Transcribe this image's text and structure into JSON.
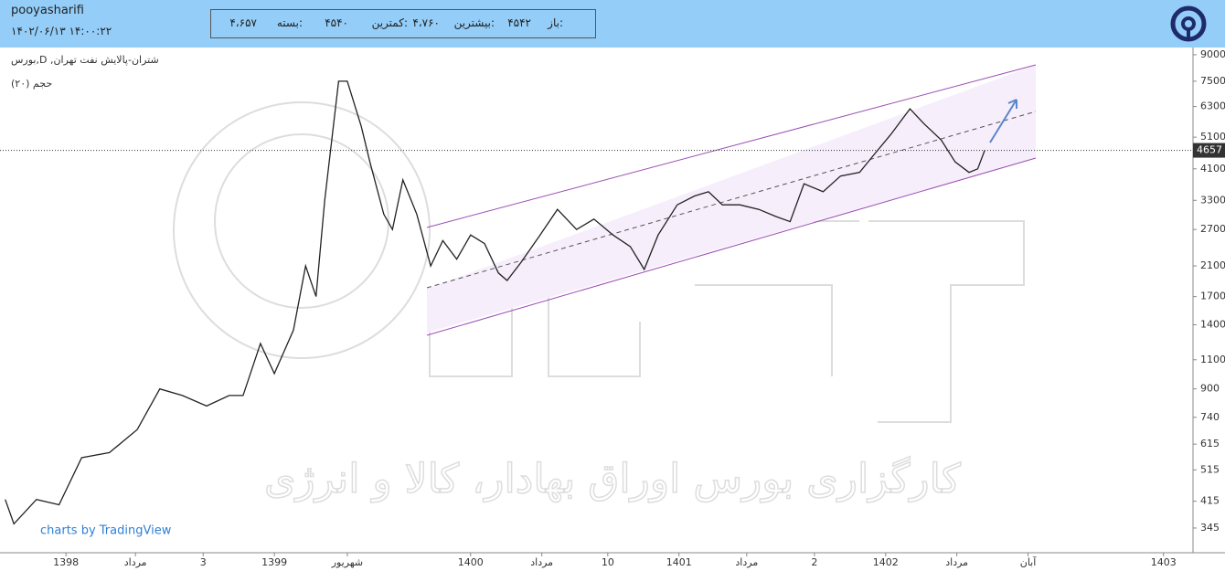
{
  "header": {
    "user": "pooyasharifi",
    "datetime": "۱۴۰۲/۰۶/۱۳ ۱۴:۰۰:۲۲",
    "ohlc": [
      {
        "label": "باز:",
        "value": "۴۵۴۲"
      },
      {
        "label": "بیشترین:",
        "value": "۴،۷۶۰"
      },
      {
        "label": "کمترین:",
        "value": "۴۵۴۰"
      },
      {
        "label": "بسته:",
        "value": "۴،۶۵۷"
      }
    ]
  },
  "chart_data": {
    "type": "line",
    "symbol": "بورس,D ,شتران-پالایش نفت تهران",
    "indicator": "حجم (۲۰)",
    "branding": "charts by TradingView",
    "watermark": "کارگزاری بورس اوراق بهادار، کالا و انرژی",
    "log_scale": true,
    "color": "#222222",
    "x": [
      -3.5,
      -3.0,
      -1.7,
      -0.4,
      0.9,
      2.5,
      4.1,
      5.4,
      6.7,
      8.1,
      9.4,
      10.2,
      11.2,
      12.0,
      13.1,
      13.8,
      14.4,
      14.9,
      15.7,
      16.2,
      17.0,
      17.5,
      18.3,
      18.8,
      19.4,
      20.2,
      21.0,
      21.7,
      22.5,
      23.3,
      24.1,
      24.9,
      25.4,
      26.2,
      27.3,
      28.3,
      29.4,
      30.4,
      31.5,
      32.5,
      33.3,
      34.1,
      35.2,
      36.2,
      37.0,
      37.8,
      38.8,
      39.9,
      40.9,
      41.7,
      42.5,
      43.6,
      44.6,
      45.7,
      46.5,
      47.5,
      48.6,
      49.4,
      50.4,
      51.2,
      52.0,
      52.5,
      52.9
    ],
    "values": [
      420,
      355,
      420,
      405,
      560,
      580,
      680,
      900,
      860,
      800,
      860,
      860,
      1230,
      1000,
      1350,
      2100,
      1700,
      3300,
      7500,
      7500,
      5500,
      4300,
      3000,
      2700,
      3800,
      3000,
      2100,
      2500,
      2200,
      2600,
      2450,
      2000,
      1900,
      2150,
      2600,
      3100,
      2700,
      2900,
      2600,
      2400,
      2050,
      2600,
      3200,
      3400,
      3500,
      3200,
      3200,
      3100,
      2950,
      2850,
      3700,
      3500,
      3900,
      4000,
      4500,
      5200,
      6200,
      5600,
      5000,
      4300,
      4000,
      4100,
      4657
    ],
    "xlim": [
      -3.8,
      64.9
    ],
    "ylim": [
      291,
      9460
    ],
    "xticks": [
      {
        "value": 0,
        "label": "1398"
      },
      {
        "value": 4.0,
        "label": "مرداد"
      },
      {
        "value": 7.9,
        "label": "3"
      },
      {
        "value": 12.0,
        "label": "1399"
      },
      {
        "value": 16.2,
        "label": "شهریور"
      },
      {
        "value": 23.3,
        "label": "1400"
      },
      {
        "value": 27.4,
        "label": "مرداد"
      },
      {
        "value": 31.2,
        "label": "10"
      },
      {
        "value": 35.3,
        "label": "1401"
      },
      {
        "value": 39.2,
        "label": "مرداد"
      },
      {
        "value": 43.1,
        "label": "2"
      },
      {
        "value": 47.2,
        "label": "1402"
      },
      {
        "value": 51.3,
        "label": "مرداد"
      },
      {
        "value": 55.4,
        "label": "آبان"
      },
      {
        "value": 63.2,
        "label": "1403"
      }
    ],
    "yticks": [
      345,
      415,
      515,
      615,
      740,
      900,
      1100,
      1400,
      1700,
      2100,
      2700,
      3300,
      4100,
      5100,
      6300,
      7500,
      9000
    ]
  }
}
